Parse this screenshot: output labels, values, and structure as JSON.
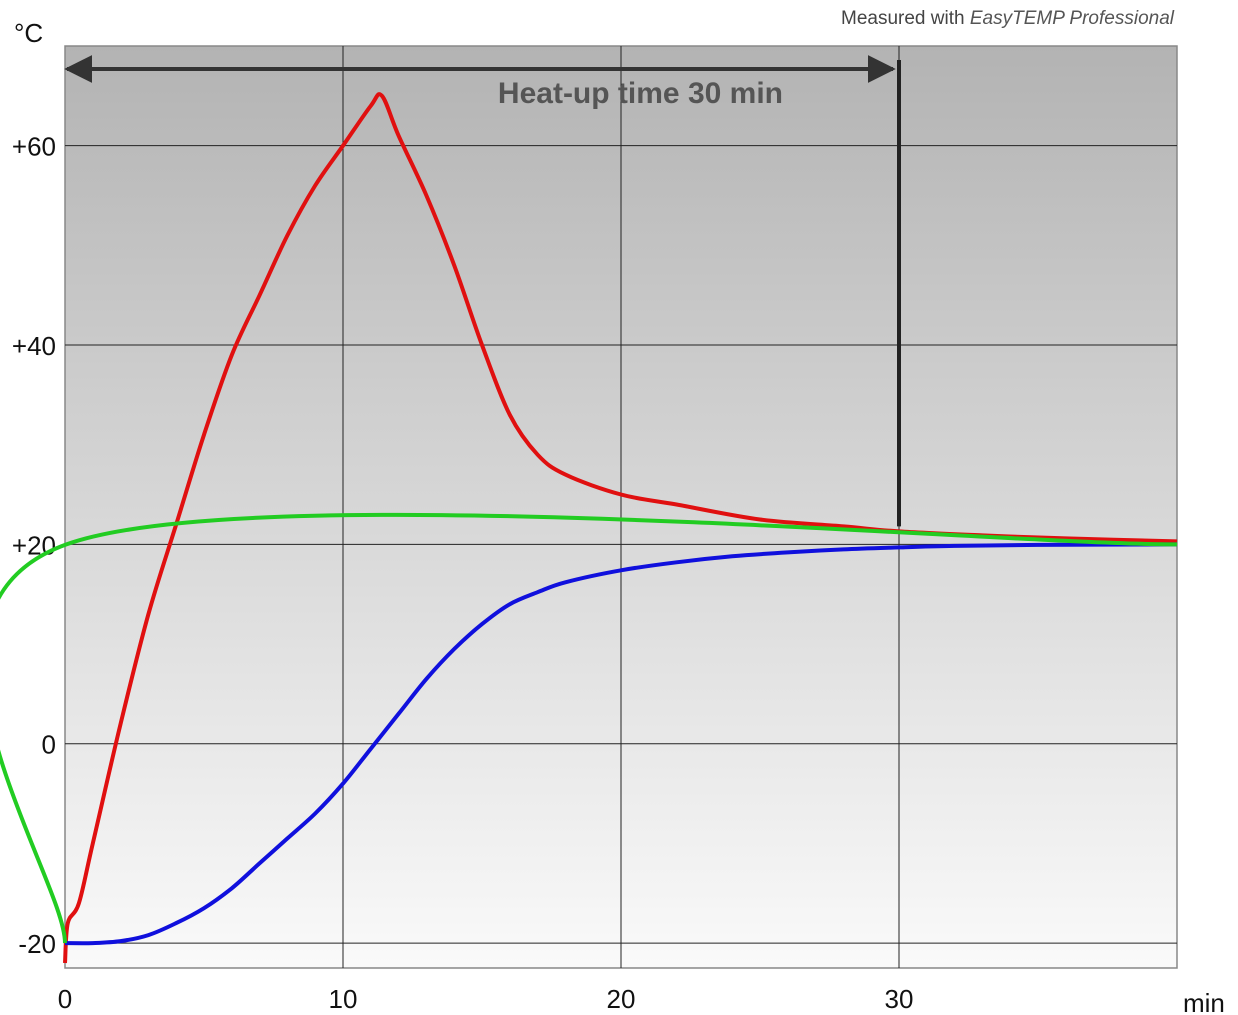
{
  "header": {
    "measured_prefix": "Measured with",
    "measured_product": "EasyTEMP Professional"
  },
  "chart_data": {
    "type": "line",
    "title": "",
    "xlabel": "min",
    "ylabel": "°C",
    "xlim": [
      0,
      40
    ],
    "ylim": [
      -22.5,
      70
    ],
    "x_ticks": [
      0,
      10,
      20,
      30
    ],
    "x_tick_labels": [
      "0",
      "10",
      "20",
      "30"
    ],
    "y_ticks": [
      -20,
      0,
      20,
      40,
      60
    ],
    "y_tick_labels": [
      "-20",
      "0",
      "+20",
      "+40",
      "+60"
    ],
    "grid": true,
    "annotation": {
      "text": "Heat-up time 30 min",
      "from_x": 0,
      "to_x": 30
    },
    "marker_line": {
      "x": 30
    },
    "series": [
      {
        "color": "#e01010",
        "x": [
          0,
          0.1,
          0.5,
          1,
          2,
          3,
          4,
          5,
          6,
          7,
          8,
          9,
          10,
          11,
          11.4,
          12,
          13,
          14,
          15,
          16,
          17,
          18,
          20,
          22,
          25,
          28,
          30,
          33,
          36,
          40
        ],
        "y": [
          -22,
          -18,
          -16,
          -10,
          2,
          13,
          22,
          31,
          39,
          45,
          51,
          56,
          60,
          64,
          65,
          61,
          55,
          48,
          40,
          33,
          29,
          27,
          25,
          24,
          22.5,
          21.8,
          21.3,
          20.9,
          20.6,
          20.3
        ]
      },
      {
        "color": "#1010dd",
        "x": [
          0,
          1,
          2,
          3,
          4,
          5,
          6,
          7,
          8,
          9,
          10,
          11,
          12,
          13,
          14,
          15,
          16,
          17,
          18,
          20,
          22,
          24,
          26,
          28,
          30,
          32,
          35,
          40
        ],
        "y": [
          -20,
          -20,
          -19.8,
          -19.2,
          -18,
          -16.5,
          -14.5,
          -12,
          -9.5,
          -7,
          -4,
          -0.5,
          3,
          6.5,
          9.5,
          12,
          14,
          15.2,
          16.2,
          17.4,
          18.2,
          18.8,
          19.2,
          19.5,
          19.7,
          19.85,
          19.95,
          20
        ]
      },
      {
        "color": "#22cc22",
        "x": [
          0,
          0.05,
          40
        ],
        "y": [
          -20,
          20,
          20
        ]
      }
    ],
    "background": "gradient grey (dark at top, light at bottom)"
  }
}
